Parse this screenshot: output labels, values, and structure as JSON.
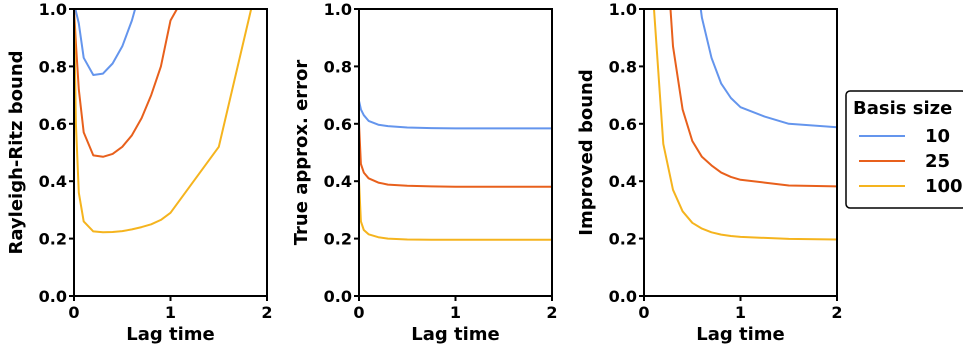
{
  "colors": {
    "series": [
      "#6495ED",
      "#E8601C",
      "#F5B41E"
    ],
    "axis": "#000000"
  },
  "legend": {
    "title": "Basis size",
    "placement": "right",
    "labels": [
      "10",
      "25",
      "100"
    ]
  },
  "chart_data": [
    {
      "type": "line",
      "xlabel": "Lag time",
      "ylabel": "Rayleigh-Ritz bound",
      "xlim": [
        0,
        2
      ],
      "ylim": [
        0,
        1.0
      ],
      "xticks": [
        "0",
        "1",
        "2"
      ],
      "yticks": [
        "0.0",
        "0.2",
        "0.4",
        "0.6",
        "0.8",
        "1.0"
      ],
      "series": [
        {
          "name": "10",
          "x": [
            0.0,
            0.05,
            0.1,
            0.2,
            0.3,
            0.4,
            0.5,
            0.6,
            0.65
          ],
          "y": [
            1.02,
            0.95,
            0.83,
            0.77,
            0.775,
            0.81,
            0.87,
            0.96,
            1.02
          ]
        },
        {
          "name": "25",
          "x": [
            0.0,
            0.02,
            0.05,
            0.1,
            0.2,
            0.3,
            0.4,
            0.5,
            0.6,
            0.7,
            0.8,
            0.9,
            1.0,
            1.1
          ],
          "y": [
            1.0,
            0.88,
            0.72,
            0.57,
            0.49,
            0.485,
            0.495,
            0.52,
            0.56,
            0.62,
            0.7,
            0.8,
            0.96,
            1.02
          ]
        },
        {
          "name": "100",
          "x": [
            0.0,
            0.02,
            0.05,
            0.1,
            0.2,
            0.3,
            0.4,
            0.5,
            0.6,
            0.7,
            0.8,
            0.9,
            1.0,
            1.5,
            1.85
          ],
          "y": [
            1.0,
            0.6,
            0.36,
            0.26,
            0.225,
            0.222,
            0.223,
            0.226,
            0.232,
            0.24,
            0.25,
            0.265,
            0.29,
            0.52,
            1.02
          ]
        }
      ]
    },
    {
      "type": "line",
      "xlabel": "Lag time",
      "ylabel": "True approx. error",
      "xlim": [
        0,
        2
      ],
      "ylim": [
        0,
        1.0
      ],
      "xticks": [
        "0",
        "1",
        "2"
      ],
      "yticks": [
        "0.0",
        "0.2",
        "0.4",
        "0.6",
        "0.8",
        "1.0"
      ],
      "series": [
        {
          "name": "10",
          "x": [
            0.0,
            0.02,
            0.05,
            0.1,
            0.2,
            0.3,
            0.5,
            0.75,
            1.0,
            1.5,
            2.0
          ],
          "y": [
            0.68,
            0.65,
            0.63,
            0.61,
            0.597,
            0.592,
            0.587,
            0.585,
            0.584,
            0.584,
            0.584
          ]
        },
        {
          "name": "25",
          "x": [
            0.0,
            0.02,
            0.05,
            0.1,
            0.2,
            0.3,
            0.5,
            0.75,
            1.0,
            1.5,
            2.0
          ],
          "y": [
            0.6,
            0.46,
            0.43,
            0.41,
            0.395,
            0.388,
            0.384,
            0.382,
            0.381,
            0.381,
            0.381
          ]
        },
        {
          "name": "100",
          "x": [
            0.0,
            0.02,
            0.05,
            0.1,
            0.2,
            0.3,
            0.5,
            0.75,
            1.0,
            1.5,
            2.0
          ],
          "y": [
            0.4,
            0.26,
            0.23,
            0.215,
            0.205,
            0.2,
            0.197,
            0.196,
            0.196,
            0.196,
            0.196
          ]
        }
      ]
    },
    {
      "type": "line",
      "xlabel": "Lag time",
      "ylabel": "Improved bound",
      "xlim": [
        0,
        2
      ],
      "ylim": [
        0,
        1.0
      ],
      "xticks": [
        "0",
        "1",
        "2"
      ],
      "yticks": [
        "0.0",
        "0.2",
        "0.4",
        "0.6",
        "0.8",
        "1.0"
      ],
      "series": [
        {
          "name": "10",
          "x": [
            0.58,
            0.6,
            0.7,
            0.8,
            0.9,
            1.0,
            1.25,
            1.5,
            2.0
          ],
          "y": [
            1.02,
            0.97,
            0.83,
            0.74,
            0.69,
            0.658,
            0.625,
            0.6,
            0.588
          ]
        },
        {
          "name": "25",
          "x": [
            0.27,
            0.3,
            0.4,
            0.5,
            0.6,
            0.7,
            0.8,
            0.9,
            1.0,
            1.25,
            1.5,
            2.0
          ],
          "y": [
            1.02,
            0.87,
            0.65,
            0.54,
            0.485,
            0.455,
            0.43,
            0.415,
            0.405,
            0.395,
            0.385,
            0.382
          ]
        },
        {
          "name": "100",
          "x": [
            0.1,
            0.2,
            0.3,
            0.4,
            0.5,
            0.6,
            0.7,
            0.8,
            0.9,
            1.0,
            1.5,
            2.0
          ],
          "y": [
            1.02,
            0.53,
            0.37,
            0.295,
            0.255,
            0.235,
            0.222,
            0.214,
            0.209,
            0.206,
            0.199,
            0.197
          ]
        }
      ]
    }
  ]
}
